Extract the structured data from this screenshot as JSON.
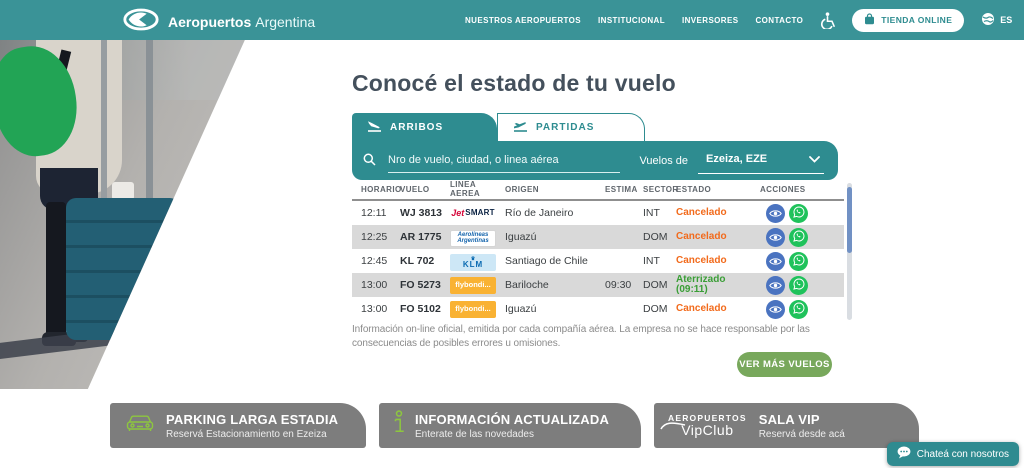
{
  "brand": {
    "bold": "Aeropuertos",
    "light": "Argentina"
  },
  "nav": {
    "items": [
      {
        "label": "NUESTROS AEROPUERTOS"
      },
      {
        "label": "INSTITUCIONAL"
      },
      {
        "label": "INVERSORES"
      },
      {
        "label": "CONTACTO"
      }
    ],
    "store_button": "TIENDA ONLINE",
    "language": "ES"
  },
  "hero": {
    "title": "Conocé el estado de tu vuelo"
  },
  "flight_widget": {
    "tabs": [
      {
        "label": "ARRIBOS"
      },
      {
        "label": "PARTIDAS"
      }
    ],
    "search": {
      "placeholder": "Nro de vuelo, ciudad, o linea aérea"
    },
    "airport_filter": {
      "label": "Vuelos de",
      "value": "Ezeiza, EZE"
    },
    "table": {
      "columns": [
        "HORARIO",
        "VUELO",
        "LINEA AEREA",
        "ORIGEN",
        "ESTIMA",
        "SECTOR",
        "ESTADO",
        "ACCIONES"
      ],
      "rows": [
        {
          "horario": "12:11",
          "vuelo": "WJ 3813",
          "logo": {
            "style": "jetsmart",
            "parts": [
              "Jet",
              "SMART"
            ]
          },
          "origen": "Río de Janeiro",
          "estima": "",
          "sector": "INT",
          "estado": "Cancelado",
          "estado_tipo": "cancelado"
        },
        {
          "horario": "12:25",
          "vuelo": "AR 1775",
          "logo": {
            "style": "aerolineas",
            "parts": [
              "Aerolíneas",
              "Argentinas"
            ]
          },
          "origen": "Iguazú",
          "estima": "",
          "sector": "DOM",
          "estado": "Cancelado",
          "estado_tipo": "cancelado"
        },
        {
          "horario": "12:45",
          "vuelo": "KL 702",
          "logo": {
            "style": "klm",
            "parts": [
              "KLM"
            ]
          },
          "origen": "Santiago de Chile",
          "estima": "",
          "sector": "INT",
          "estado": "Cancelado",
          "estado_tipo": "cancelado"
        },
        {
          "horario": "13:00",
          "vuelo": "FO 5273",
          "logo": {
            "style": "flybondi",
            "parts": [
              "flybondi..."
            ]
          },
          "origen": "Bariloche",
          "estima": "09:30",
          "sector": "DOM",
          "estado": "Aterrizado (09:11)",
          "estado_tipo": "aterrizado"
        },
        {
          "horario": "13:00",
          "vuelo": "FO 5102",
          "logo": {
            "style": "flybondi",
            "parts": [
              "flybondi..."
            ]
          },
          "origen": "Iguazú",
          "estima": "",
          "sector": "DOM",
          "estado": "Cancelado",
          "estado_tipo": "cancelado"
        }
      ]
    },
    "disclaimer": "Información on-line oficial, emitida por cada compañía aérea. La empresa no se hace responsable por las consecuencias de posibles errores u omisiones.",
    "more_button": "VER MÁS VUELOS"
  },
  "promo_cards": [
    {
      "title": "PARKING LARGA ESTADIA",
      "subtitle": "Reservá Estacionamiento en Ezeiza"
    },
    {
      "title": "INFORMACIÓN ACTUALIZADA",
      "subtitle": "Enterate de las novedades"
    },
    {
      "title": "SALA VIP",
      "subtitle": "Reservá desde acá",
      "logo_top": "AEROPUERTOS",
      "logo_bottom": "VipClub"
    }
  ],
  "chat": {
    "label": "Chateá con nosotros"
  },
  "colors": {
    "header_teal": "#3a9397",
    "panel_teal": "#2e8c90",
    "cancelado_orange": "#f26a1b",
    "aterrizado_green": "#3a9e36",
    "button_green": "#78a85c",
    "card_gray": "#7d7d7d",
    "icon_green": "#8dc63f",
    "eye_blue": "#4a73c0",
    "whatsapp_green": "#1fc25b"
  }
}
